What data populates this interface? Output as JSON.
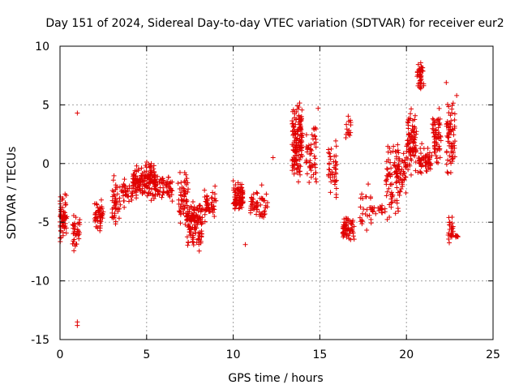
{
  "chart_data": {
    "type": "scatter",
    "title": "Day 151 of 2024, Sidereal Day-to-day VTEC variation (SDTVAR) for receiver eur2",
    "xlabel": "GPS time / hours",
    "ylabel": "SDTVAR / TECUs",
    "xlim": [
      0,
      25
    ],
    "ylim": [
      -15,
      10
    ],
    "xticks": [
      0,
      5,
      10,
      15,
      20,
      25
    ],
    "yticks": [
      -15,
      -10,
      -5,
      0,
      5,
      10
    ],
    "grid": true,
    "marker": "+",
    "color": "#e00000",
    "series": [
      {
        "name": "eur2",
        "clusters": [
          {
            "x": [
              0.0,
              0.4
            ],
            "y": [
              -7.0,
              -2.0
            ],
            "n": 60
          },
          {
            "x": [
              0.7,
              1.2
            ],
            "y": [
              -7.8,
              -4.0
            ],
            "n": 35
          },
          {
            "x": [
              2.0,
              2.5
            ],
            "y": [
              -6.5,
              -2.2
            ],
            "n": 50
          },
          {
            "x": [
              3.0,
              3.5
            ],
            "y": [
              -6.0,
              -0.8
            ],
            "n": 45
          },
          {
            "x": [
              3.5,
              4.2
            ],
            "y": [
              -4.5,
              -0.5
            ],
            "n": 35
          },
          {
            "x": [
              4.2,
              5.5
            ],
            "y": [
              -3.5,
              0.5
            ],
            "n": 160
          },
          {
            "x": [
              5.5,
              6.5
            ],
            "y": [
              -3.5,
              -0.5
            ],
            "n": 60
          },
          {
            "x": [
              6.8,
              7.4
            ],
            "y": [
              -6.0,
              0.3
            ],
            "n": 55
          },
          {
            "x": [
              7.3,
              8.2
            ],
            "y": [
              -7.8,
              -2.5
            ],
            "n": 130
          },
          {
            "x": [
              8.2,
              9.0
            ],
            "y": [
              -5.5,
              -1.5
            ],
            "n": 50
          },
          {
            "x": [
              10.0,
              10.6
            ],
            "y": [
              -4.8,
              -0.8
            ],
            "n": 80
          },
          {
            "x": [
              11.0,
              12.0
            ],
            "y": [
              -5.5,
              -1.5
            ],
            "n": 55
          },
          {
            "x": [
              13.4,
              14.0
            ],
            "y": [
              -2.8,
              6.3
            ],
            "n": 150
          },
          {
            "x": [
              14.2,
              14.8
            ],
            "y": [
              -3.0,
              4.5
            ],
            "n": 50
          },
          {
            "x": [
              15.5,
              16.0
            ],
            "y": [
              -4.0,
              3.0
            ],
            "n": 45
          },
          {
            "x": [
              16.3,
              17.0
            ],
            "y": [
              -6.8,
              -4.0
            ],
            "n": 60
          },
          {
            "x": [
              16.5,
              16.8
            ],
            "y": [
              1.0,
              5.0
            ],
            "n": 15
          },
          {
            "x": [
              17.3,
              18.0
            ],
            "y": [
              -7.0,
              -1.0
            ],
            "n": 25
          },
          {
            "x": [
              18.0,
              18.8
            ],
            "y": [
              -4.5,
              -3.5
            ],
            "n": 20
          },
          {
            "x": [
              18.8,
              19.6
            ],
            "y": [
              -6.0,
              3.0
            ],
            "n": 80
          },
          {
            "x": [
              19.4,
              20.0
            ],
            "y": [
              -3.0,
              1.5
            ],
            "n": 40
          },
          {
            "x": [
              20.0,
              20.6
            ],
            "y": [
              -2.0,
              5.5
            ],
            "n": 90
          },
          {
            "x": [
              20.6,
              21.0
            ],
            "y": [
              6.0,
              9.2
            ],
            "n": 40
          },
          {
            "x": [
              20.6,
              21.5
            ],
            "y": [
              -1.5,
              2.0
            ],
            "n": 60
          },
          {
            "x": [
              21.5,
              22.0
            ],
            "y": [
              -0.5,
              5.0
            ],
            "n": 60
          },
          {
            "x": [
              22.3,
              22.8
            ],
            "y": [
              -2.5,
              6.5
            ],
            "n": 70
          },
          {
            "x": [
              22.4,
              22.7
            ],
            "y": [
              -7.0,
              -4.0
            ],
            "n": 25
          },
          {
            "x": [
              22.8,
              23.0
            ],
            "y": [
              -6.5,
              -6.0
            ],
            "n": 8
          }
        ],
        "points": [
          {
            "x": 1.0,
            "y": 4.3
          },
          {
            "x": 1.0,
            "y": -13.5
          },
          {
            "x": 1.0,
            "y": -13.8
          },
          {
            "x": 10.7,
            "y": -6.9
          },
          {
            "x": 12.3,
            "y": 0.5
          },
          {
            "x": 14.9,
            "y": 4.7
          },
          {
            "x": 22.3,
            "y": 6.9
          },
          {
            "x": 22.9,
            "y": 5.8
          }
        ]
      }
    ]
  }
}
